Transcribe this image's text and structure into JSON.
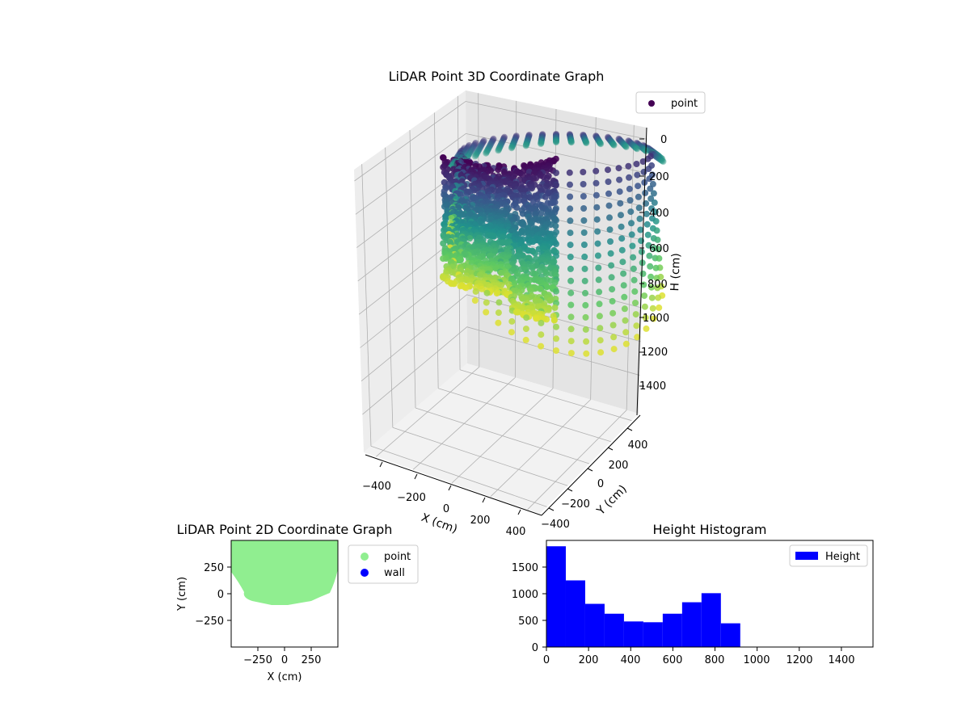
{
  "chart_data": [
    {
      "type": "scatter",
      "projection": "3d",
      "title": "LiDAR Point 3D Coordinate Graph",
      "xlabel": "X (cm)",
      "ylabel": "Y (cm)",
      "zlabel": "H (cm)",
      "x_ticks": [
        "−400",
        "−200",
        "0",
        "200",
        "400"
      ],
      "y_ticks": [
        "−400",
        "−200",
        "0",
        "200",
        "400"
      ],
      "z_ticks": [
        "0",
        "200",
        "400",
        "600",
        "800",
        "1000",
        "1200",
        "1400"
      ],
      "xlim": [
        -500,
        500
      ],
      "ylim": [
        -500,
        500
      ],
      "zlim": [
        1500,
        0
      ],
      "z_inverted": true,
      "legend": {
        "labels": [
          "point"
        ],
        "placement": "upper-right"
      },
      "colormap": "viridis",
      "grid": true
    },
    {
      "type": "scatter",
      "title": "LiDAR Point 2D Coordinate Graph",
      "xlabel": "X (cm)",
      "ylabel": "Y (cm)",
      "x_ticks": [
        "−250",
        "0",
        "250"
      ],
      "y_ticks": [
        "250",
        "0",
        "−250"
      ],
      "xlim": [
        -500,
        500
      ],
      "ylim": [
        -500,
        500
      ],
      "series": [
        {
          "name": "point",
          "color": "#90ee90"
        },
        {
          "name": "wall",
          "color": "#0000ff"
        }
      ],
      "legend": {
        "placement": "outside-right"
      }
    },
    {
      "type": "bar",
      "subtype": "histogram",
      "title": "Height Histogram",
      "xlabel": "",
      "ylabel": "",
      "bin_edges": [
        0,
        92,
        184,
        276,
        368,
        460,
        552,
        644,
        736,
        828,
        920
      ],
      "values": [
        1890,
        1250,
        810,
        625,
        480,
        465,
        625,
        840,
        1010,
        445
      ],
      "x_ticks": [
        "0",
        "200",
        "400",
        "600",
        "800",
        "1000",
        "1200",
        "1400"
      ],
      "y_ticks": [
        "0",
        "500",
        "1000",
        "1500"
      ],
      "xlim": [
        0,
        1550
      ],
      "ylim": [
        0,
        2000
      ],
      "series": [
        {
          "name": "Height",
          "color": "#0000ff"
        }
      ],
      "legend": {
        "placement": "upper-right"
      }
    }
  ]
}
